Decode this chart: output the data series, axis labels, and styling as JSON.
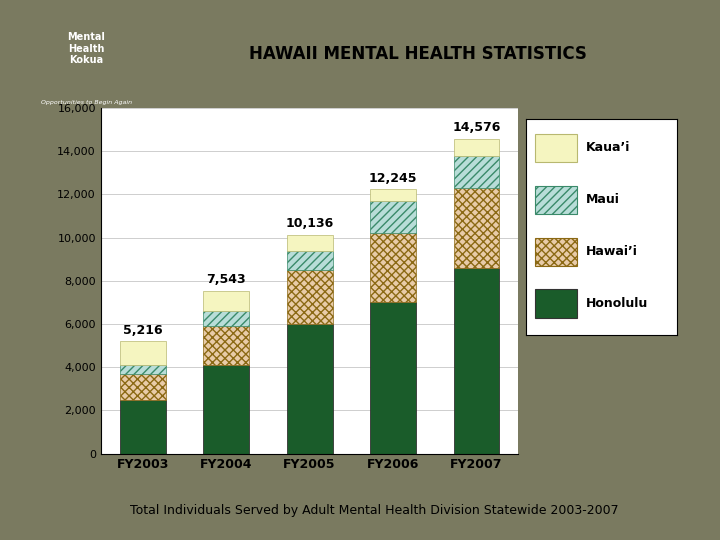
{
  "categories": [
    "FY2003",
    "FY2004",
    "FY2005",
    "FY2006",
    "FY2007"
  ],
  "totals": [
    5216,
    7543,
    10136,
    12245,
    14576
  ],
  "honolulu": [
    2500,
    4100,
    6000,
    7000,
    8600
  ],
  "hawaii": [
    1200,
    1800,
    2500,
    3200,
    3700
  ],
  "maui": [
    400,
    700,
    900,
    1500,
    1500
  ],
  "color_honolulu": "#1a5c2a",
  "color_hawaii_face": "#e8cba8",
  "color_hawaii_edge": "#8b6914",
  "color_maui_face": "#b8ddd8",
  "color_maui_edge": "#3a8a6a",
  "color_kauai": "#f5f5c0",
  "color_kauai_edge": "#b8b870",
  "title": "HAWAII MENTAL HEALTH STATISTICS",
  "subtitle": "Total Individuals Served by Adult Mental Health Division Statewide 2003-2007",
  "ylim": [
    0,
    16000
  ],
  "yticks": [
    0,
    2000,
    4000,
    6000,
    8000,
    10000,
    12000,
    14000,
    16000
  ],
  "bg_color": "#7a7a60",
  "chart_bg": "#ffffff",
  "logo_bg": "#8b8040",
  "legend_labels": [
    "Kaua’i",
    "Maui",
    "Hawai’i",
    "Honolulu"
  ]
}
